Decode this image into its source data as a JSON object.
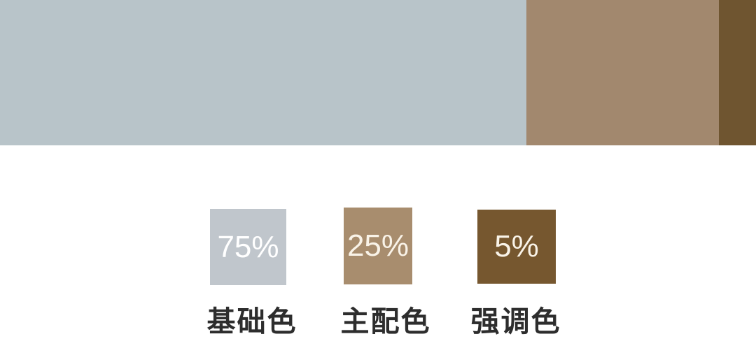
{
  "palette": {
    "background_color": "#ffffff",
    "bar": {
      "segments": [
        {
          "name": "base-color-segment",
          "color": "#b8c4c9",
          "proportion_percent": 75
        },
        {
          "name": "main-color-segment",
          "color": "#a2886e",
          "proportion_percent": 25
        },
        {
          "name": "accent-color-segment",
          "color": "#6f5530",
          "proportion_percent": 5
        }
      ]
    },
    "swatches": [
      {
        "percent": "75%",
        "label": "基础色",
        "color": "#c0c6cc",
        "percent_text_color": "#ffffff"
      },
      {
        "percent": "25%",
        "label": "主配色",
        "color": "#a88d6e",
        "percent_text_color": "#f9f3e8"
      },
      {
        "percent": "5%",
        "label": "强调色",
        "color": "#76572f",
        "percent_text_color": "#f9f3e8"
      }
    ]
  }
}
